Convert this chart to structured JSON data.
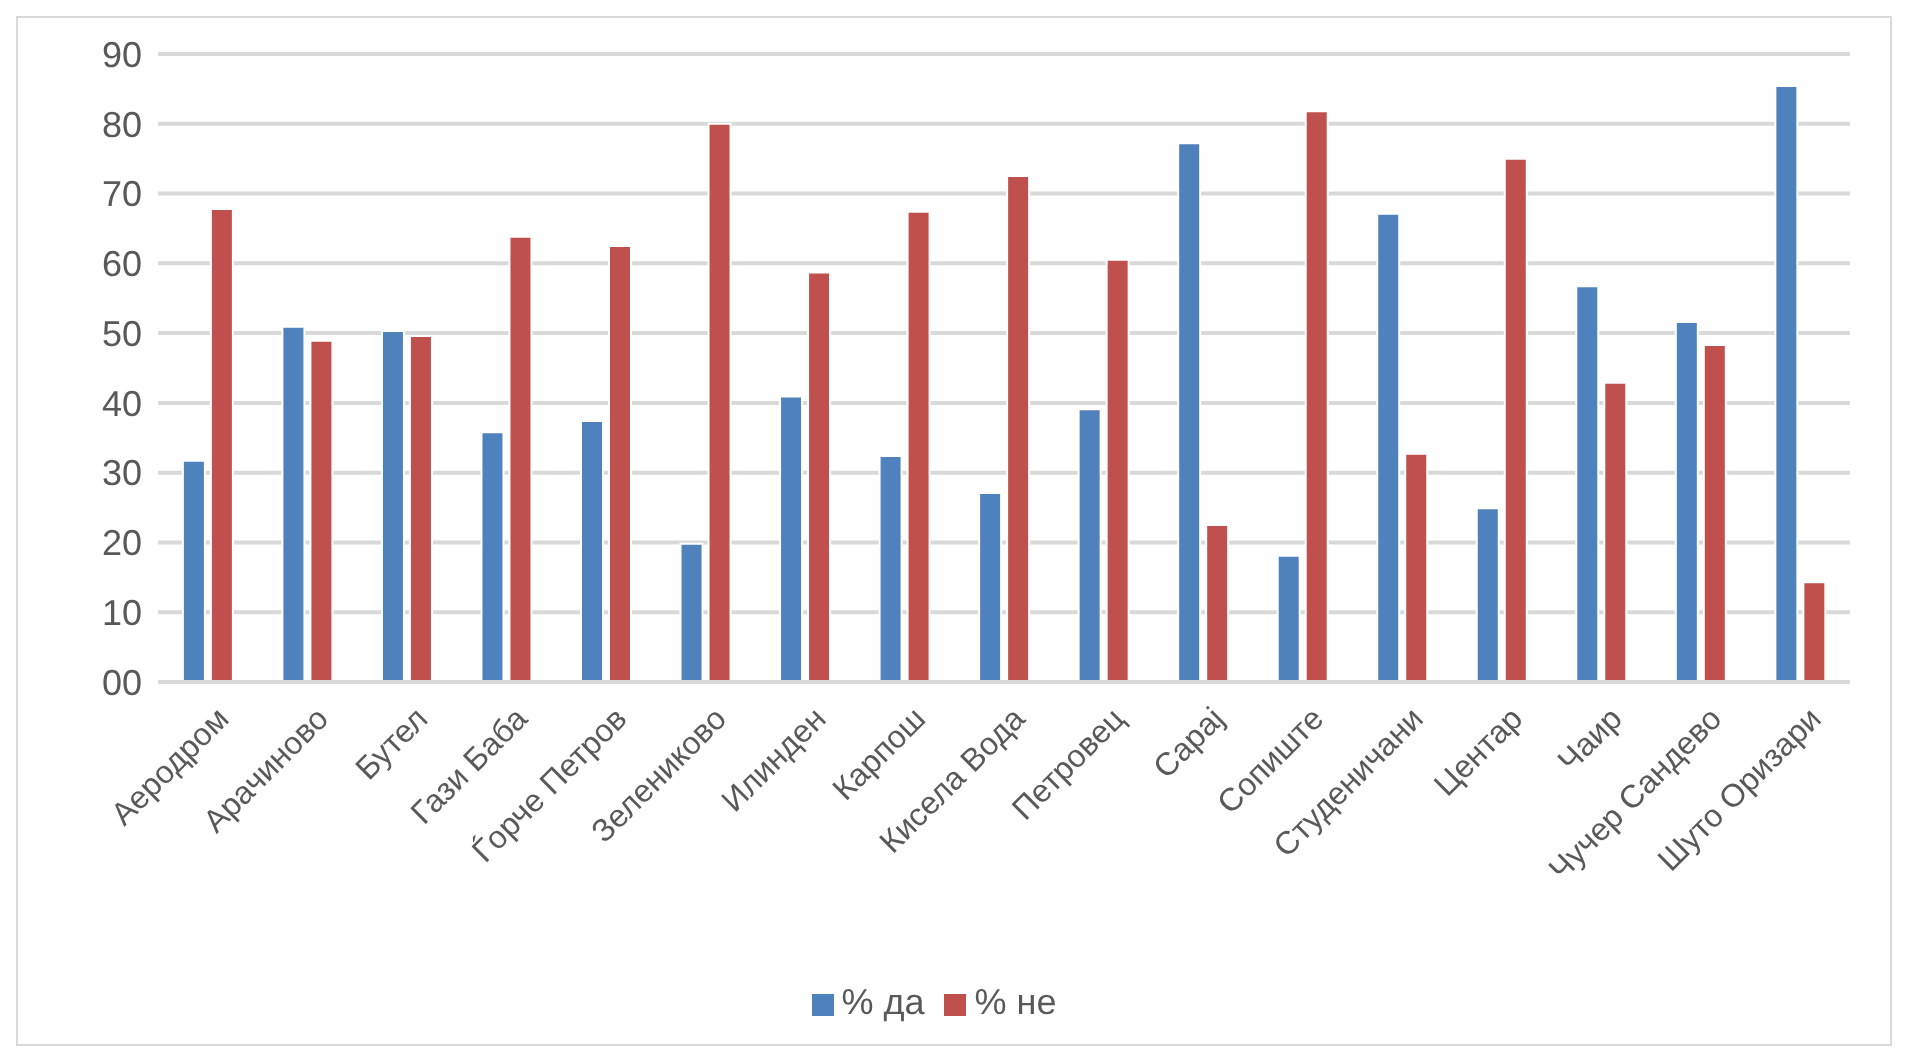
{
  "chart_data": {
    "type": "bar",
    "categories": [
      "Аеродром",
      "Арачиново",
      "Бутел",
      "Гази Баба",
      "Ѓорче Петров",
      "Зелениково",
      "Илинден",
      "Карпош",
      "Кисела Вода",
      "Петровец",
      "Сарај",
      "Сопиште",
      "Студеничани",
      "Центар",
      "Чаир",
      "Чучер Сандево",
      "Шуто Оризари"
    ],
    "series": [
      {
        "name": "% да",
        "color": "#4f81bd",
        "values": [
          31.7,
          50.9,
          50.3,
          35.8,
          37.4,
          19.8,
          40.9,
          32.4,
          27.1,
          39.1,
          77.2,
          18.1,
          67.1,
          24.9,
          56.7,
          51.6,
          85.4
        ]
      },
      {
        "name": "% не",
        "color": "#c0504d",
        "values": [
          67.8,
          48.9,
          49.6,
          63.8,
          62.5,
          80,
          58.7,
          67.4,
          72.5,
          60.5,
          22.5,
          81.8,
          32.7,
          75,
          42.9,
          48.3,
          14.3
        ]
      }
    ],
    "ylim": [
      0,
      90
    ],
    "yticks": [
      {
        "value": 0,
        "label": "00"
      },
      10,
      20,
      30,
      40,
      50,
      60,
      70,
      80,
      90
    ],
    "grid": "y",
    "legend": "bottom"
  }
}
